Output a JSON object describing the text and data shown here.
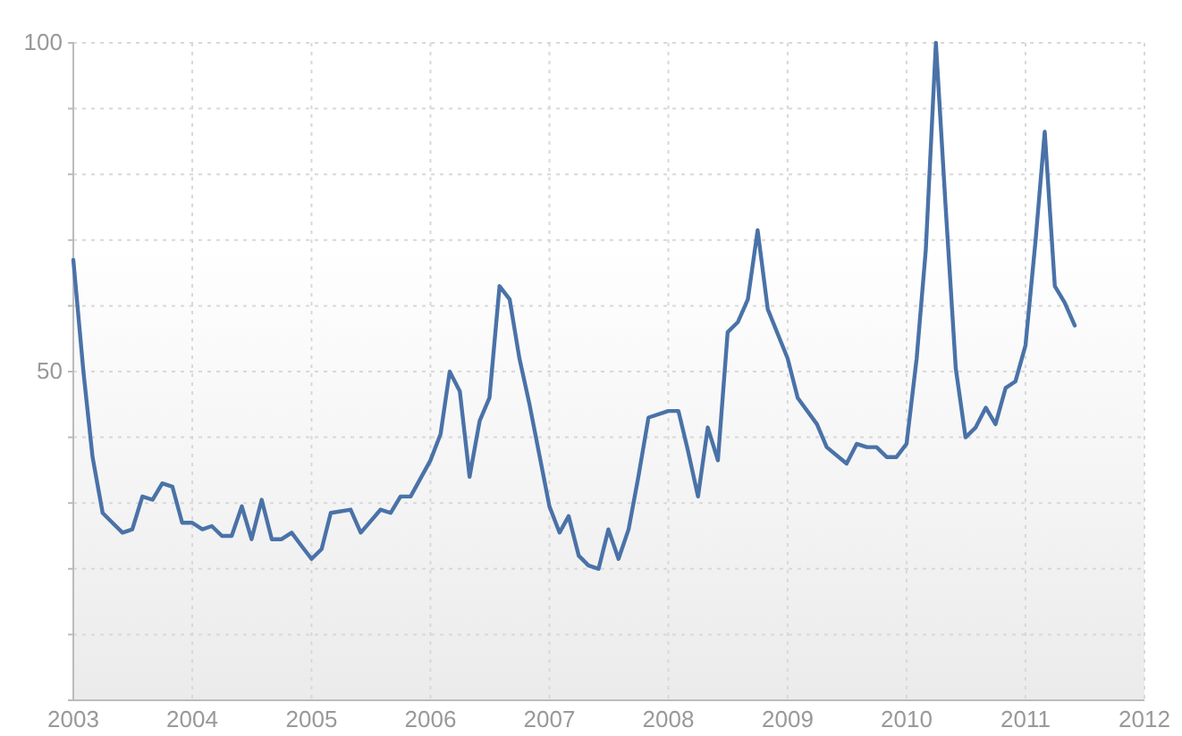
{
  "chart_data": {
    "type": "line",
    "xlim": [
      "2003-01",
      "2012-01"
    ],
    "xticks": [
      "2003",
      "2004",
      "2005",
      "2006",
      "2007",
      "2008",
      "2009",
      "2010",
      "2011",
      "2012"
    ],
    "ylim": [
      0,
      100
    ],
    "yticks": [
      {
        "value": 0,
        "label": null
      },
      {
        "value": 10,
        "label": null
      },
      {
        "value": 20,
        "label": null
      },
      {
        "value": 30,
        "label": null
      },
      {
        "value": 40,
        "label": null
      },
      50,
      {
        "value": 60,
        "label": null
      },
      {
        "value": 70,
        "label": null
      },
      {
        "value": 80,
        "label": null
      },
      {
        "value": 90,
        "label": null
      },
      100
    ],
    "grid": true,
    "line_style": "solid",
    "marker": "none",
    "series": [
      {
        "color": "#4a72a8",
        "x": [
          "2003-01",
          "2003-02",
          "2003-03",
          "2003-04",
          "2003-05",
          "2003-06",
          "2003-07",
          "2003-08",
          "2003-09",
          "2003-10",
          "2003-11",
          "2003-12",
          "2004-01",
          "2004-02",
          "2004-03",
          "2004-04",
          "2004-05",
          "2004-06",
          "2004-07",
          "2004-08",
          "2004-09",
          "2004-10",
          "2004-11",
          "2004-12",
          "2005-01",
          "2005-02",
          "2005-03",
          "2005-05",
          "2005-06",
          "2005-08",
          "2005-09",
          "2005-10",
          "2005-11",
          "2006-01",
          "2006-02",
          "2006-03",
          "2006-04",
          "2006-05",
          "2006-06",
          "2006-07",
          "2006-08",
          "2006-09",
          "2006-10",
          "2006-11",
          "2007-01",
          "2007-02",
          "2007-03",
          "2007-04",
          "2007-05",
          "2007-06",
          "2007-07",
          "2007-08",
          "2007-09",
          "2007-10",
          "2007-11",
          "2008-01",
          "2008-02",
          "2008-03",
          "2008-04",
          "2008-05",
          "2008-06",
          "2008-07",
          "2008-08",
          "2008-09",
          "2008-10",
          "2008-11",
          "2009-01",
          "2009-02",
          "2009-04",
          "2009-05",
          "2009-07",
          "2009-08",
          "2009-09",
          "2009-10",
          "2009-11",
          "2009-12",
          "2010-01",
          "2010-02",
          "2010-03",
          "2010-04",
          "2010-05",
          "2010-06",
          "2010-07",
          "2010-08",
          "2010-09",
          "2010-10",
          "2010-11",
          "2010-12",
          "2011-01",
          "2011-02",
          "2011-03",
          "2011-04",
          "2011-05",
          "2011-06"
        ],
        "values": [
          67,
          50,
          37,
          28.5,
          27,
          25.5,
          26,
          31,
          30.5,
          33,
          32.5,
          27,
          27,
          26,
          26.5,
          25,
          25,
          29.5,
          24.5,
          30.5,
          24.5,
          24.5,
          25.5,
          23.5,
          21.5,
          23,
          28.5,
          29,
          25.5,
          29,
          28.5,
          31,
          31,
          36.5,
          40.5,
          50,
          47,
          34,
          42.5,
          46,
          63,
          61,
          52,
          45,
          29.5,
          25.5,
          28,
          22,
          20.5,
          20,
          26,
          21.5,
          26,
          34,
          43,
          44,
          44,
          38,
          31,
          41.5,
          36.5,
          56,
          57.5,
          61,
          71.5,
          59.5,
          52,
          46,
          42,
          38.5,
          36,
          39,
          38.5,
          38.5,
          37,
          37,
          39,
          52,
          68.5,
          100,
          75,
          50.5,
          40,
          41.5,
          44.5,
          42,
          47.5,
          48.5,
          54,
          70,
          86.5,
          63,
          60.5,
          57
        ]
      }
    ]
  }
}
